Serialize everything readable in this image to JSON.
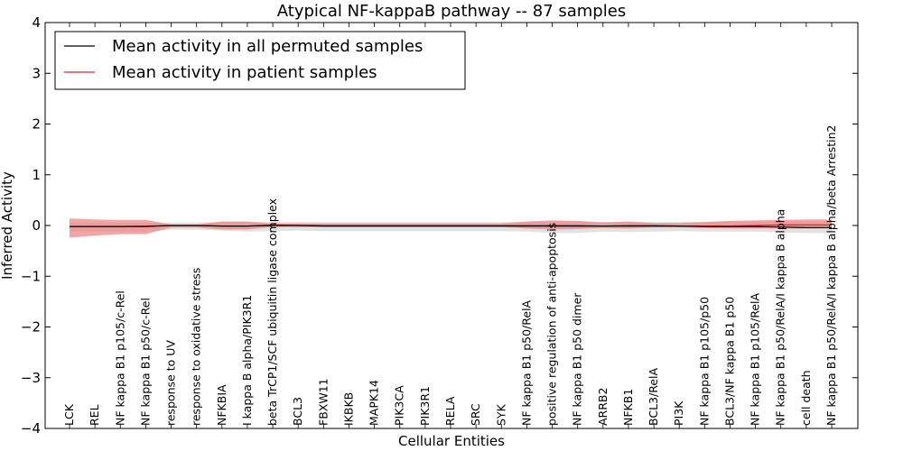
{
  "chart_data": {
    "type": "line",
    "title": "Atypical NF-kappaB pathway -- 87 samples",
    "xlabel": "Cellular Entities",
    "ylabel": "Inferred Activity",
    "ylim": [
      -4,
      4
    ],
    "yticks": [
      -4,
      -3,
      -2,
      -1,
      0,
      1,
      2,
      3,
      4
    ],
    "ytick_labels": [
      "−4",
      "−3",
      "−2",
      "−1",
      "0",
      "1",
      "2",
      "3",
      "4"
    ],
    "grid": false,
    "legend_position": "top-left",
    "colors": {
      "permuted_line": "#000000",
      "permuted_band": "#bfbfbf",
      "patient_line": "#d62728",
      "patient_band": "#f08080"
    },
    "categories": [
      "LCK",
      "REL",
      "NF kappa B1 p105/c-Rel",
      "NF kappa B1 p50/c-Rel",
      "response to UV",
      "response to oxidative stress",
      "NFKBIA",
      "I kappa B alpha/PIK3R1",
      "beta TrCP1/SCF ubiquitin ligase complex",
      "BCL3",
      "FBXW11",
      "IKBKB",
      "MAPK14",
      "PIK3CA",
      "PIK3R1",
      "RELA",
      "SRC",
      "SYK",
      "NF kappa B1 p50/RelA",
      "positive regulation of anti-apoptosis",
      "NF kappa B1 p50 dimer",
      "ARRB2",
      "NFKB1",
      "BCL3/RelA",
      "PI3K",
      "NF kappa B1 p105/p50",
      "BCL3/NF kappa B1 p50",
      "NF kappa B1 p105/RelA",
      "NF kappa B1 p50/RelA/I kappa B alpha",
      "cell death",
      "NF kappa B1 p50/RelA/I kappa B alpha/beta Arrestin2"
    ],
    "series": [
      {
        "name": "Mean activity in all permuted samples",
        "color": "#000000",
        "values": [
          -0.02,
          -0.02,
          -0.02,
          -0.02,
          0.0,
          0.0,
          -0.01,
          -0.01,
          0.0,
          0.0,
          -0.01,
          -0.01,
          -0.01,
          -0.01,
          -0.01,
          -0.01,
          -0.01,
          -0.01,
          -0.01,
          -0.01,
          -0.01,
          -0.01,
          -0.01,
          -0.01,
          -0.01,
          -0.02,
          -0.02,
          -0.02,
          -0.03,
          -0.04,
          -0.04
        ],
        "band_low": [
          -0.12,
          -0.12,
          -0.12,
          -0.12,
          -0.08,
          -0.08,
          -0.1,
          -0.12,
          -0.11,
          -0.1,
          -0.11,
          -0.11,
          -0.11,
          -0.11,
          -0.11,
          -0.11,
          -0.11,
          -0.11,
          -0.12,
          -0.15,
          -0.15,
          -0.12,
          -0.13,
          -0.12,
          -0.11,
          -0.12,
          -0.12,
          -0.12,
          -0.14,
          -0.15,
          -0.15
        ],
        "band_high": [
          0.06,
          0.06,
          0.06,
          0.06,
          0.06,
          0.06,
          0.07,
          0.07,
          0.07,
          0.07,
          0.07,
          0.07,
          0.07,
          0.07,
          0.07,
          0.07,
          0.07,
          0.07,
          0.07,
          0.08,
          0.08,
          0.07,
          0.07,
          0.07,
          0.07,
          0.07,
          0.08,
          0.08,
          0.08,
          0.08,
          0.08
        ]
      },
      {
        "name": "Mean activity in patient samples",
        "color": "#d62728",
        "values": [
          -0.02,
          -0.02,
          -0.02,
          -0.01,
          0.0,
          0.0,
          -0.01,
          -0.01,
          0.01,
          0.0,
          0.0,
          0.0,
          0.0,
          0.0,
          0.0,
          0.0,
          0.0,
          0.0,
          0.0,
          0.0,
          0.0,
          -0.01,
          0.0,
          0.0,
          -0.01,
          -0.01,
          -0.01,
          0.0,
          0.01,
          0.01,
          0.01
        ],
        "band_low": [
          -0.24,
          -0.2,
          -0.17,
          -0.17,
          -0.04,
          -0.04,
          -0.08,
          -0.08,
          -0.03,
          -0.03,
          -0.03,
          -0.03,
          -0.03,
          -0.03,
          -0.03,
          -0.03,
          -0.03,
          -0.03,
          -0.06,
          -0.08,
          -0.07,
          -0.05,
          -0.06,
          -0.04,
          -0.04,
          -0.05,
          -0.06,
          -0.06,
          -0.06,
          -0.06,
          -0.06
        ],
        "band_high": [
          0.14,
          0.12,
          0.11,
          0.11,
          0.02,
          0.02,
          0.08,
          0.08,
          0.04,
          0.04,
          0.04,
          0.04,
          0.04,
          0.04,
          0.04,
          0.04,
          0.04,
          0.04,
          0.08,
          0.1,
          0.09,
          0.06,
          0.08,
          0.05,
          0.05,
          0.07,
          0.09,
          0.1,
          0.11,
          0.12,
          0.12
        ]
      }
    ]
  }
}
